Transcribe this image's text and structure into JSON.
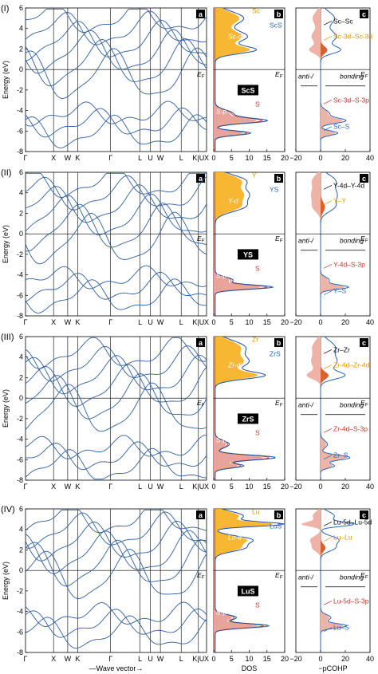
{
  "colors": {
    "band": "#2f5f9e",
    "total": "#1f4e9c",
    "metal_d": "#f5a623",
    "metal_fill": "#f7b733",
    "s_p": "#e8a49a",
    "s_line": "#c0392b",
    "cohp_pale": "#eeb3a6",
    "cohp_mid": "#d9622b",
    "cohp_blue": "#2a62b8",
    "label_orange": "#e69500",
    "label_red": "#c0392b",
    "label_blue": "#2a62b8"
  },
  "chart_data": {
    "type": "band_structure_dos_cohp",
    "band_axis": {
      "ylabel": "Energy (eV)",
      "ylim": [
        -8,
        6
      ],
      "yticks": [
        "6",
        "4",
        "2",
        "0",
        "-2",
        "-4",
        "-6",
        "-8"
      ],
      "kpoint_labels": [
        "Γ",
        "X",
        "W",
        "K",
        "Γ",
        "L",
        "U",
        "W",
        "L",
        "K|U",
        "X"
      ],
      "xlabel": "—Wave vector→"
    },
    "dos_axis": {
      "xlabel": "DOS",
      "xlim": [
        0,
        20
      ],
      "xticks": [
        "0",
        "5",
        "10",
        "15",
        "20"
      ]
    },
    "cohp_axis": {
      "xlabel": "−pCOHP",
      "xlim": [
        -20,
        40
      ],
      "xticks": [
        "−20",
        "0",
        "20",
        "40"
      ],
      "left_note": "anti-/",
      "right_note": "bonding"
    },
    "fermi_label": "E",
    "fermi_sub": "F",
    "panel_tags": [
      "a",
      "b",
      "c"
    ],
    "rows": [
      {
        "roman": "(I)",
        "compound": "ScS",
        "metal_label": "Sc",
        "metal_d_label": "Sc-d",
        "total_label": "ScS",
        "sp_label": "S-p",
        "s_label": "S",
        "cohp_labels": [
          "Sc–Sc",
          "Sc-3d–Sc-3d",
          "Sc-3d–S-3p",
          "Sc–S"
        ],
        "dos_peaks": [
          {
            "e": -5.0,
            "h": 14,
            "w": 0.35
          },
          {
            "e": -6.2,
            "h": 10,
            "w": 0.3
          },
          {
            "e": -4.3,
            "h": 5,
            "w": 0.5
          },
          {
            "e": 1.9,
            "h": 11,
            "w": 0.5
          },
          {
            "e": 3.2,
            "h": 9,
            "w": 0.8
          },
          {
            "e": 5.0,
            "h": 8,
            "w": 0.9
          }
        ]
      },
      {
        "roman": "(II)",
        "compound": "YS",
        "metal_label": "Y",
        "metal_d_label": "Y-d",
        "total_label": "YS",
        "sp_label": "S-p",
        "s_label": "S",
        "cohp_labels": [
          "Y-4d–Y-4d",
          "Y–Y",
          "Y-4d–S-3p",
          "Y–S"
        ],
        "dos_peaks": [
          {
            "e": -5.2,
            "h": 16,
            "w": 0.3
          },
          {
            "e": -4.5,
            "h": 5,
            "w": 0.4
          },
          {
            "e": 2.6,
            "h": 7,
            "w": 0.7
          },
          {
            "e": 3.8,
            "h": 9,
            "w": 0.9
          },
          {
            "e": 5.2,
            "h": 8,
            "w": 0.8
          }
        ]
      },
      {
        "roman": "(III)",
        "compound": "ZrS",
        "metal_label": "Zr",
        "metal_d_label": "Zr-d",
        "total_label": "ZrS",
        "sp_label": "S-p",
        "s_label": "S",
        "cohp_labels": [
          "Zr–Zr",
          "Zr-4d–Zr-4d",
          "Zr-4d–S-3p",
          "Zr–S"
        ],
        "dos_peaks": [
          {
            "e": -5.8,
            "h": 17,
            "w": 0.35
          },
          {
            "e": -6.6,
            "h": 8,
            "w": 0.3
          },
          {
            "e": -4.5,
            "h": 4,
            "w": 0.5
          },
          {
            "e": 2.2,
            "h": 13,
            "w": 0.5
          },
          {
            "e": 3.5,
            "h": 9,
            "w": 0.9
          },
          {
            "e": 5.0,
            "h": 8,
            "w": 0.9
          }
        ]
      },
      {
        "roman": "(IV)",
        "compound": "LuS",
        "metal_label": "Lu",
        "metal_d_label": "Lu-d",
        "total_label": "LuS",
        "sp_label": "S-p",
        "s_label": "S",
        "cohp_labels": [
          "Lu-5d–Lu-5d",
          "Lu–Lu",
          "Lu-5d–S-3p",
          "Lu–S"
        ],
        "dos_peaks": [
          {
            "e": -5.4,
            "h": 15,
            "w": 0.3
          },
          {
            "e": -4.6,
            "h": 6,
            "w": 0.4
          },
          {
            "e": 2.2,
            "h": 8,
            "w": 0.5
          },
          {
            "e": 3.0,
            "h": 10,
            "w": 0.5
          },
          {
            "e": 4.5,
            "h": 18,
            "w": 0.3
          },
          {
            "e": 5.3,
            "h": 8,
            "w": 0.6
          }
        ]
      }
    ]
  }
}
